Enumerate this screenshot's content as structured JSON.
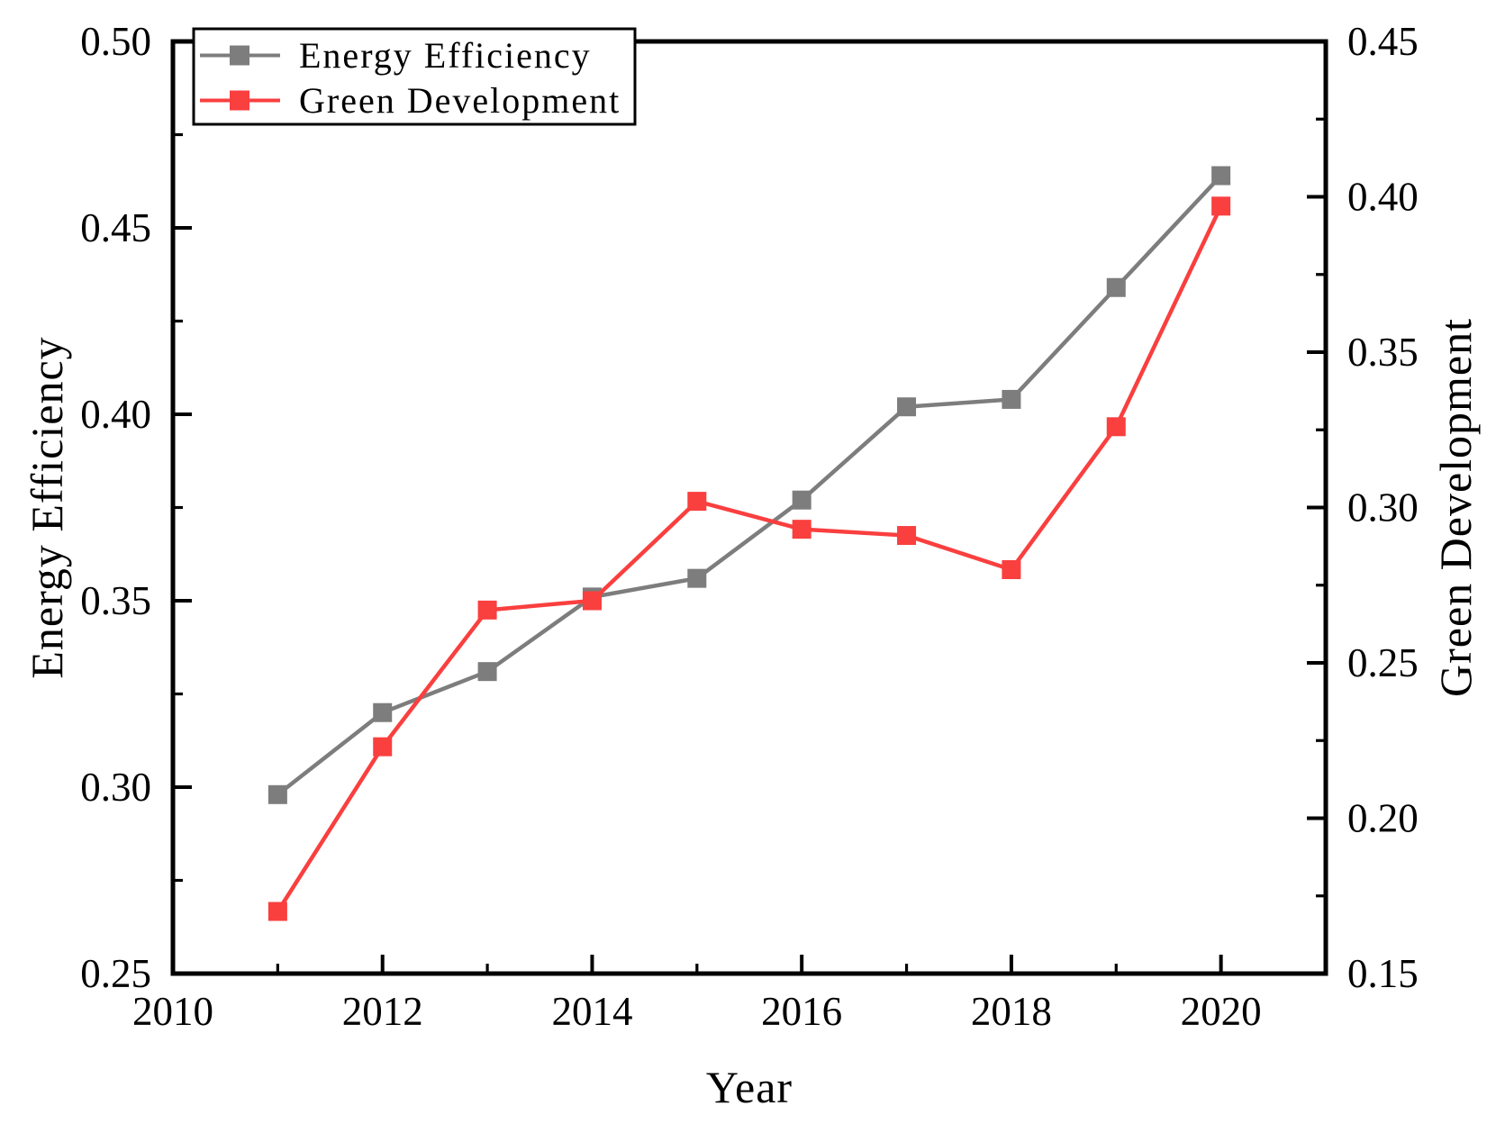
{
  "chart_data": {
    "type": "line",
    "title": "",
    "xlabel": "Year",
    "ylabel_left": "Energy Efficiency",
    "ylabel_right": "Green Development",
    "grid": false,
    "legend_position": "top-left",
    "x_range": [
      2010,
      2021
    ],
    "x_major_ticks": [
      2010,
      2012,
      2014,
      2016,
      2018,
      2020
    ],
    "x_major_tick_labels": [
      "2010",
      "2012",
      "2014",
      "2016",
      "2018",
      "2020"
    ],
    "x_minor_ticks": [
      2011,
      2013,
      2015,
      2017,
      2019,
      2021
    ],
    "left_range": [
      0.25,
      0.5
    ],
    "left_tick_labels": [
      "0.25",
      "0.30",
      "0.35",
      "0.40",
      "0.45",
      "0.50"
    ],
    "left_minor_ticks": [
      0.275,
      0.325,
      0.375,
      0.425,
      0.475
    ],
    "right_range": [
      0.15,
      0.45
    ],
    "right_tick_labels": [
      "0.15",
      "0.20",
      "0.25",
      "0.30",
      "0.35",
      "0.40",
      "0.45"
    ],
    "right_minor_ticks": [
      0.175,
      0.225,
      0.275,
      0.325,
      0.375,
      0.425
    ],
    "x": [
      2011,
      2012,
      2013,
      2014,
      2015,
      2016,
      2017,
      2018,
      2019,
      2020
    ],
    "series": [
      {
        "name": "Energy Efficiency",
        "axis": "left",
        "color": "#7d7d7d",
        "marker": "square",
        "values": [
          0.298,
          0.32,
          0.331,
          0.351,
          0.356,
          0.377,
          0.402,
          0.404,
          0.434,
          0.464
        ]
      },
      {
        "name": "Green Development",
        "axis": "right",
        "color": "#fa3f3f",
        "marker": "square",
        "values": [
          0.17,
          0.223,
          0.267,
          0.27,
          0.302,
          0.293,
          0.291,
          0.28,
          0.326,
          0.397
        ]
      }
    ],
    "colors": {
      "frame": "#000000",
      "background": "#ffffff"
    }
  }
}
